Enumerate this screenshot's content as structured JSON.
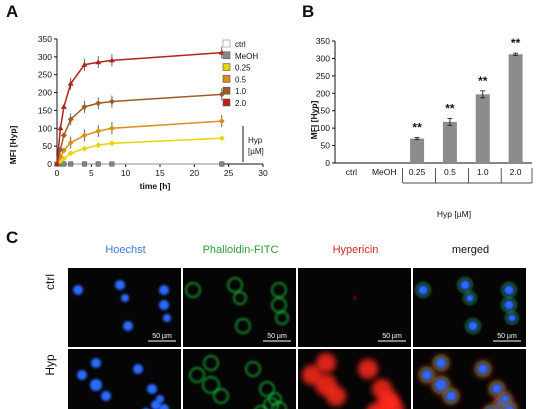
{
  "panels": {
    "a": "A",
    "b": "B",
    "c": "C"
  },
  "chart_data": [
    {
      "type": "line",
      "panel": "A",
      "ylabel": "MFI [Hyp]",
      "xlabel": "time [h]",
      "xlim": [
        0,
        30
      ],
      "ylim": [
        0,
        350
      ],
      "xticks": [
        "0",
        "5",
        "10",
        "15",
        "20",
        "25",
        "30"
      ],
      "yticks": [
        "0",
        "50",
        "100",
        "150",
        "200",
        "250",
        "300",
        "350"
      ],
      "legend_title": "Hyp [µM]",
      "legend_placement": "right",
      "x": [
        0,
        0.5,
        1,
        2,
        4,
        6,
        8,
        24
      ],
      "series": [
        {
          "name": "ctrl",
          "color": "#ffffff",
          "stroke": "#888888",
          "marker": "circle",
          "values": [
            0,
            0,
            0,
            0,
            0,
            0,
            0,
            0
          ]
        },
        {
          "name": "MeOH",
          "color": "#888888",
          "stroke": "#555555",
          "marker": "square",
          "values": [
            0,
            0,
            0,
            0,
            0,
            0,
            0,
            0
          ]
        },
        {
          "name": "0.25",
          "color": "#e8d400",
          "stroke": "#e8d400",
          "marker": "diamond",
          "values": [
            0,
            8,
            15,
            30,
            43,
            53,
            58,
            72
          ]
        },
        {
          "name": "0.5",
          "color": "#d9901a",
          "stroke": "#d9901a",
          "marker": "diamond",
          "values": [
            0,
            20,
            38,
            60,
            80,
            92,
            100,
            120
          ]
        },
        {
          "name": "1.0",
          "color": "#a05a28",
          "stroke": "#a05a28",
          "marker": "diamond",
          "values": [
            0,
            40,
            80,
            125,
            160,
            170,
            175,
            195
          ]
        },
        {
          "name": "2.0",
          "color": "#b3221c",
          "stroke": "#b3221c",
          "marker": "triangle",
          "values": [
            0,
            100,
            160,
            225,
            278,
            285,
            290,
            312
          ]
        }
      ]
    },
    {
      "type": "bar",
      "panel": "B",
      "ylabel": "MFI [Hyp]",
      "xlabel": "Hyp [µM]",
      "ylim": [
        0,
        350
      ],
      "yticks": [
        "0",
        "50",
        "100",
        "150",
        "200",
        "250",
        "300",
        "350"
      ],
      "categories": [
        "ctrl",
        "MeOH",
        "0.25",
        "0.5",
        "1.0",
        "2.0"
      ],
      "values": [
        0,
        0,
        70,
        118,
        197,
        312
      ],
      "errors": [
        0,
        0,
        3,
        10,
        10,
        3
      ],
      "significance": [
        "",
        "",
        "**",
        "**",
        "**",
        "**"
      ],
      "bar_color": "#8c8c8c"
    }
  ],
  "microscopy": {
    "columns": [
      {
        "label": "Hoechst",
        "color": "#3a7ad8"
      },
      {
        "label": "Phalloidin-FITC",
        "color": "#2e9a3a"
      },
      {
        "label": "Hypericin",
        "color": "#d62424"
      },
      {
        "label": "merged",
        "color": "#111111"
      }
    ],
    "rows": [
      "ctrl",
      "Hyp"
    ],
    "scale_bar": "50 µm"
  }
}
